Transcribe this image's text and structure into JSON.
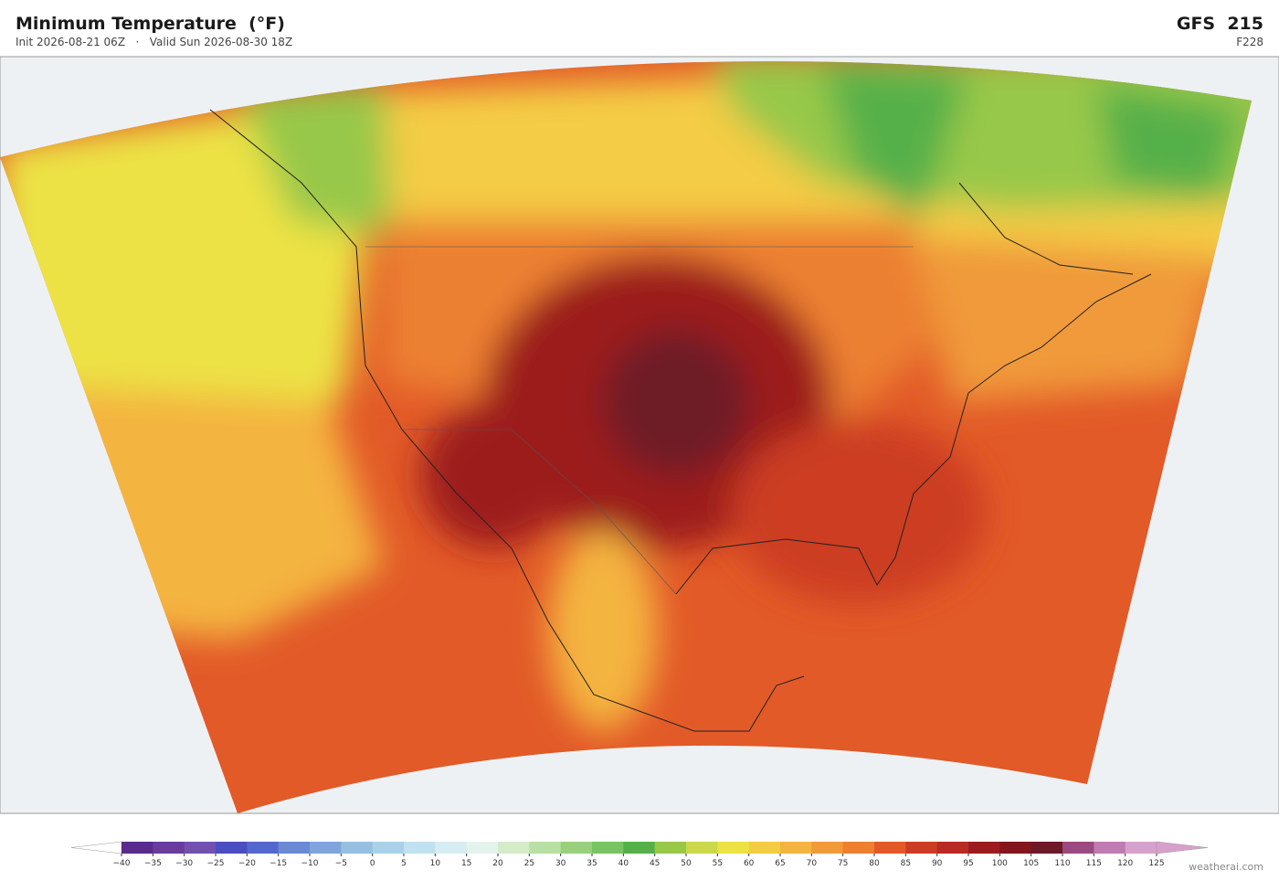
{
  "header": {
    "title": "Minimum Temperature  (°F)",
    "subtitle": "Init 2026-08-21 06Z   ·   Valid Sun 2026-08-30 18Z",
    "model": "GFS  215",
    "run": "F228"
  },
  "colorbar": {
    "ticks": [
      {
        "value": -40,
        "label": "−40"
      },
      {
        "value": -35,
        "label": "−35"
      },
      {
        "value": -30,
        "label": "−30"
      },
      {
        "value": -25,
        "label": "−25"
      },
      {
        "value": -20,
        "label": "−20"
      },
      {
        "value": -15,
        "label": "−15"
      },
      {
        "value": -10,
        "label": "−10"
      },
      {
        "value": -5,
        "label": "−5"
      },
      0,
      5,
      10,
      15,
      20,
      25,
      30,
      35,
      40,
      45,
      50,
      55,
      60,
      65,
      70,
      75,
      80,
      85,
      90,
      95,
      100,
      105,
      110,
      115,
      120,
      125
    ],
    "colors": [
      "#5b2a8e",
      "#6a3a9e",
      "#7350b0",
      "#4a4ec0",
      "#5468cc",
      "#6a8ad4",
      "#7fa6dc",
      "#94c0e4",
      "#a8d2ea",
      "#c0e2f0",
      "#d6eef3",
      "#e4f4ec",
      "#d4ecc8",
      "#b8e0a0",
      "#98d07c",
      "#78c462",
      "#56b04a",
      "#98c84a",
      "#cad84a",
      "#ece244",
      "#f4cc44",
      "#f4b440",
      "#f09a3a",
      "#ec8030",
      "#e25a28",
      "#cc3c24",
      "#b82a22",
      "#9c1c1e",
      "#82161c",
      "#6e1a26",
      "#9a4a80",
      "#c07ab4",
      "#d8a0cc"
    ],
    "extend_colors": [
      "#ffffff",
      "#d8a0cc"
    ]
  },
  "footer": {
    "credit": "weatherai.com"
  }
}
